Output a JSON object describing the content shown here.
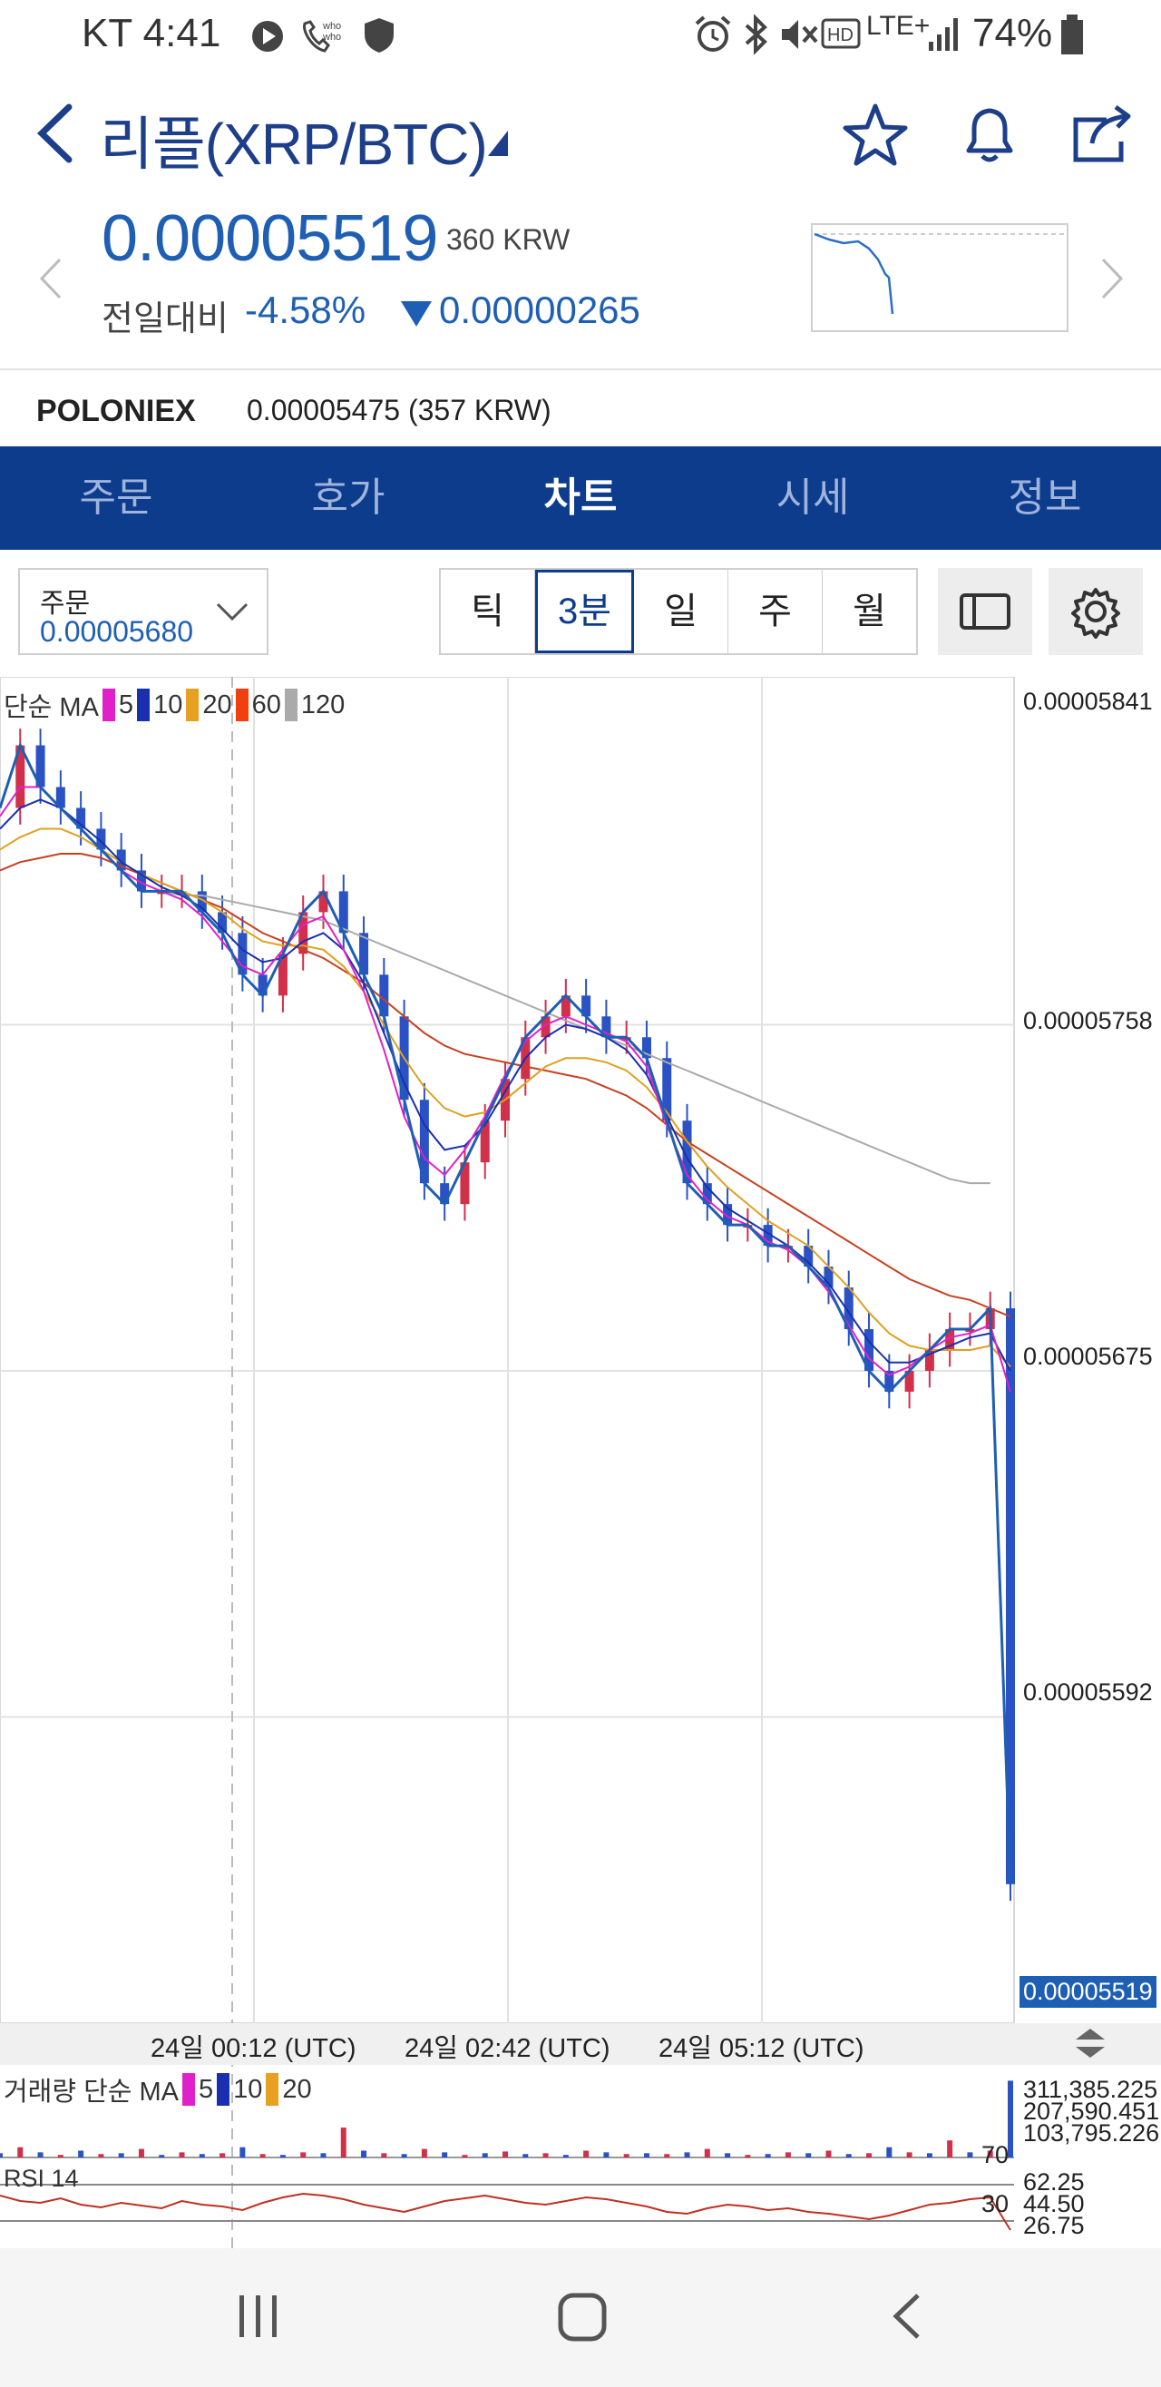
{
  "status_bar": {
    "carrier_time": "KT 4:41",
    "battery": "74%",
    "network": "LTE+",
    "left_icons": [
      "play-circle-icon",
      "whowho-call-icon",
      "shield-icon"
    ],
    "right_icons": [
      "alarm-icon",
      "bluetooth-icon",
      "mute-icon",
      "hd-icon",
      "lte-icon",
      "signal-icon",
      "battery-icon"
    ]
  },
  "header": {
    "title": "리플(XRP/BTC)",
    "price": "0.00005519",
    "krw": "360 KRW",
    "change_label": "전일대비",
    "change_pct": "-4.58%",
    "change_amount": "0.00000265"
  },
  "exchange": {
    "name": "POLONIEX",
    "price": "0.00005475 (357 KRW)"
  },
  "tabs": [
    {
      "label": "주문",
      "active": false
    },
    {
      "label": "호가",
      "active": false
    },
    {
      "label": "차트",
      "active": true
    },
    {
      "label": "시세",
      "active": false
    },
    {
      "label": "정보",
      "active": false
    }
  ],
  "controls": {
    "order_label": "주문",
    "order_value": "0.00005680",
    "periods": [
      {
        "label": "틱",
        "active": false
      },
      {
        "label": "3분",
        "active": true
      },
      {
        "label": "일",
        "active": false
      },
      {
        "label": "주",
        "active": false
      },
      {
        "label": "월",
        "active": false
      }
    ]
  },
  "chart_data": {
    "type": "line",
    "legend": {
      "label": "단순 MA",
      "items": [
        {
          "name": "5",
          "color": "#e020c8"
        },
        {
          "name": "10",
          "color": "#1a2fb0"
        },
        {
          "name": "20",
          "color": "#e8a020"
        },
        {
          "name": "60",
          "color": "#f04010"
        },
        {
          "name": "120",
          "color": "#aaaaaa"
        }
      ]
    },
    "y_ticks": [
      "0.00005841",
      "0.00005758",
      "0.00005675",
      "0.00005592"
    ],
    "last_price": "0.00005519",
    "ylim": [
      5.519e-05,
      5.841e-05
    ],
    "x_ticks": [
      "24일 00:12 (UTC)",
      "24일 02:42 (UTC)",
      "24일 05:12 (UTC)"
    ],
    "price_series": [
      5.81,
      5.825,
      5.815,
      5.81,
      5.805,
      5.8,
      5.795,
      5.79,
      5.79,
      5.79,
      5.785,
      5.78,
      5.77,
      5.765,
      5.775,
      5.785,
      5.79,
      5.78,
      5.77,
      5.76,
      5.74,
      5.72,
      5.715,
      5.725,
      5.735,
      5.745,
      5.755,
      5.76,
      5.765,
      5.76,
      5.755,
      5.755,
      5.75,
      5.735,
      5.72,
      5.715,
      5.71,
      5.71,
      5.705,
      5.705,
      5.7,
      5.695,
      5.685,
      5.675,
      5.67,
      5.675,
      5.68,
      5.685,
      5.685,
      5.69,
      5.5519
    ],
    "ma5": [
      5.808,
      5.815,
      5.815,
      5.81,
      5.805,
      5.8,
      5.795,
      5.792,
      5.79,
      5.788,
      5.784,
      5.778,
      5.772,
      5.77,
      5.776,
      5.782,
      5.784,
      5.776,
      5.766,
      5.752,
      5.736,
      5.726,
      5.722,
      5.728,
      5.736,
      5.746,
      5.754,
      5.758,
      5.76,
      5.758,
      5.756,
      5.754,
      5.748,
      5.734,
      5.722,
      5.716,
      5.712,
      5.71,
      5.706,
      5.704,
      5.7,
      5.694,
      5.686,
      5.678,
      5.674,
      5.676,
      5.68,
      5.683,
      5.684,
      5.686,
      5.67
    ],
    "ma10": [
      5.805,
      5.81,
      5.812,
      5.81,
      5.806,
      5.802,
      5.797,
      5.794,
      5.791,
      5.789,
      5.786,
      5.781,
      5.776,
      5.773,
      5.774,
      5.778,
      5.78,
      5.776,
      5.768,
      5.756,
      5.744,
      5.734,
      5.728,
      5.729,
      5.734,
      5.742,
      5.75,
      5.755,
      5.758,
      5.757,
      5.755,
      5.752,
      5.746,
      5.736,
      5.726,
      5.719,
      5.714,
      5.711,
      5.708,
      5.705,
      5.701,
      5.696,
      5.689,
      5.682,
      5.677,
      5.677,
      5.679,
      5.681,
      5.683,
      5.684,
      5.675
    ],
    "ma20": [
      5.8,
      5.803,
      5.805,
      5.805,
      5.803,
      5.8,
      5.797,
      5.794,
      5.792,
      5.79,
      5.788,
      5.785,
      5.781,
      5.778,
      5.777,
      5.777,
      5.776,
      5.772,
      5.766,
      5.758,
      5.75,
      5.743,
      5.738,
      5.736,
      5.737,
      5.74,
      5.744,
      5.748,
      5.75,
      5.75,
      5.749,
      5.747,
      5.743,
      5.737,
      5.73,
      5.724,
      5.719,
      5.715,
      5.711,
      5.708,
      5.705,
      5.7,
      5.695,
      5.689,
      5.684,
      5.681,
      5.68,
      5.68,
      5.68,
      5.681,
      5.676
    ],
    "ma60": [
      5.795,
      5.797,
      5.798,
      5.799,
      5.799,
      5.798,
      5.796,
      5.794,
      5.792,
      5.79,
      5.788,
      5.786,
      5.783,
      5.78,
      5.778,
      5.776,
      5.774,
      5.771,
      5.768,
      5.764,
      5.76,
      5.756,
      5.753,
      5.751,
      5.75,
      5.749,
      5.748,
      5.747,
      5.746,
      5.745,
      5.743,
      5.741,
      5.738,
      5.734,
      5.73,
      5.727,
      5.724,
      5.721,
      5.718,
      5.715,
      5.712,
      5.709,
      5.706,
      5.703,
      5.7,
      5.697,
      5.695,
      5.693,
      5.692,
      5.69,
      5.688
    ],
    "ma120": [
      null,
      null,
      null,
      null,
      null,
      null,
      null,
      null,
      5.79,
      5.789,
      5.789,
      5.788,
      5.787,
      5.786,
      5.785,
      5.784,
      5.783,
      5.781,
      5.779,
      5.777,
      5.775,
      5.773,
      5.771,
      5.769,
      5.767,
      5.765,
      5.763,
      5.761,
      5.759,
      5.757,
      5.755,
      5.753,
      5.751,
      5.749,
      5.747,
      5.745,
      5.743,
      5.741,
      5.739,
      5.737,
      5.735,
      5.733,
      5.731,
      5.729,
      5.727,
      5.725,
      5.723,
      5.721,
      5.72,
      5.72,
      null
    ],
    "volume": {
      "legend_label": "거래량 단순 MA",
      "items": [
        {
          "name": "5",
          "color": "#e020c8"
        },
        {
          "name": "10",
          "color": "#1a2fb0"
        },
        {
          "name": "20",
          "color": "#e8a020"
        }
      ],
      "y_ticks": [
        "311,385.225",
        "207,590.451",
        "103,795.226"
      ],
      "values": [
        0.05,
        0.12,
        0.06,
        0.03,
        0.08,
        0.04,
        0.05,
        0.1,
        0.03,
        0.06,
        0.04,
        0.05,
        0.12,
        0.04,
        0.03,
        0.06,
        0.05,
        0.35,
        0.08,
        0.05,
        0.04,
        0.1,
        0.06,
        0.03,
        0.05,
        0.07,
        0.04,
        0.05,
        0.03,
        0.08,
        0.06,
        0.04,
        0.05,
        0.04,
        0.06,
        0.1,
        0.05,
        0.03,
        0.04,
        0.06,
        0.05,
        0.08,
        0.04,
        0.05,
        0.12,
        0.06,
        0.05,
        0.2,
        0.06,
        0.08,
        0.9
      ]
    },
    "rsi": {
      "label": "RSI 14",
      "levels": [
        "70",
        "30"
      ],
      "values": [
        "62.25",
        "44.50",
        "26.75"
      ],
      "series": [
        58,
        52,
        50,
        55,
        48,
        45,
        50,
        47,
        44,
        52,
        48,
        46,
        42,
        50,
        56,
        60,
        58,
        54,
        48,
        44,
        40,
        46,
        52,
        55,
        58,
        54,
        50,
        48,
        52,
        56,
        54,
        50,
        46,
        40,
        38,
        44,
        48,
        46,
        42,
        44,
        40,
        38,
        35,
        32,
        36,
        42,
        48,
        50,
        54,
        56,
        20
      ]
    }
  }
}
